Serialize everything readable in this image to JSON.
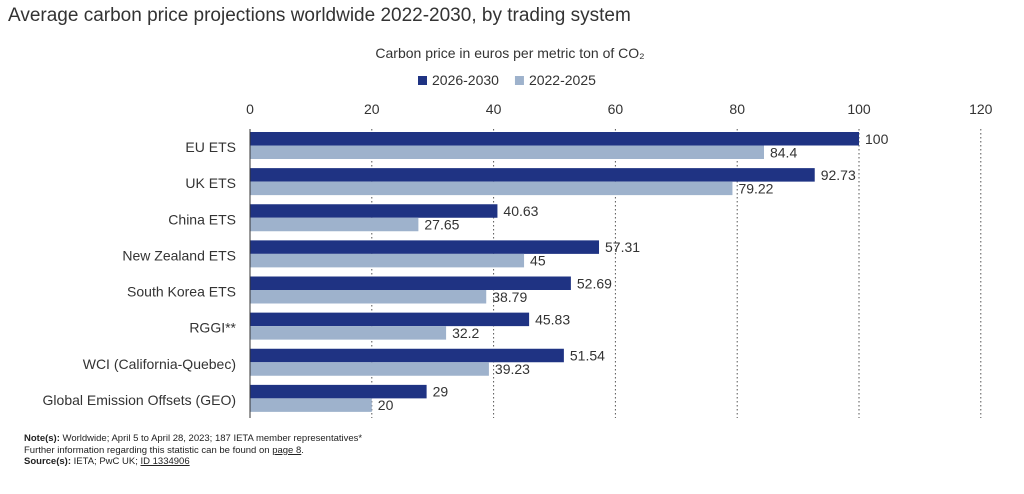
{
  "title": "Average carbon price projections worldwide 2022-2030, by trading system",
  "chart_data": {
    "type": "bar",
    "orientation": "horizontal",
    "axis_title": "Carbon price in euros per metric ton of CO₂",
    "categories": [
      "EU ETS",
      "UK ETS",
      "China ETS",
      "New Zealand ETS",
      "South Korea ETS",
      "RGGI**",
      "WCI (California-Quebec)",
      "Global Emission Offsets (GEO)"
    ],
    "series": [
      {
        "name": "2026-2030",
        "color": "#1f3383",
        "values": [
          100,
          92.73,
          40.63,
          57.31,
          52.69,
          45.83,
          51.54,
          29
        ]
      },
      {
        "name": "2022-2025",
        "color": "#9eb2cc",
        "values": [
          84.4,
          79.22,
          27.65,
          45,
          38.79,
          32.2,
          39.23,
          20
        ]
      }
    ],
    "xlim": [
      0,
      120
    ],
    "ticks": [
      0,
      20,
      40,
      60,
      80,
      100,
      120
    ],
    "grid": true,
    "legend_position": "top"
  },
  "footer": {
    "note_label": "Note(s):",
    "note_text": " Worldwide; April 5 to April 28, 2023; 187 IETA member representatives*",
    "further_text": "Further information regarding this statistic can be found on ",
    "further_link": "page 8",
    "further_end": ".",
    "source_label": "Source(s):",
    "source_text": " IETA; PwC UK; ",
    "source_link": "ID 1334906"
  }
}
